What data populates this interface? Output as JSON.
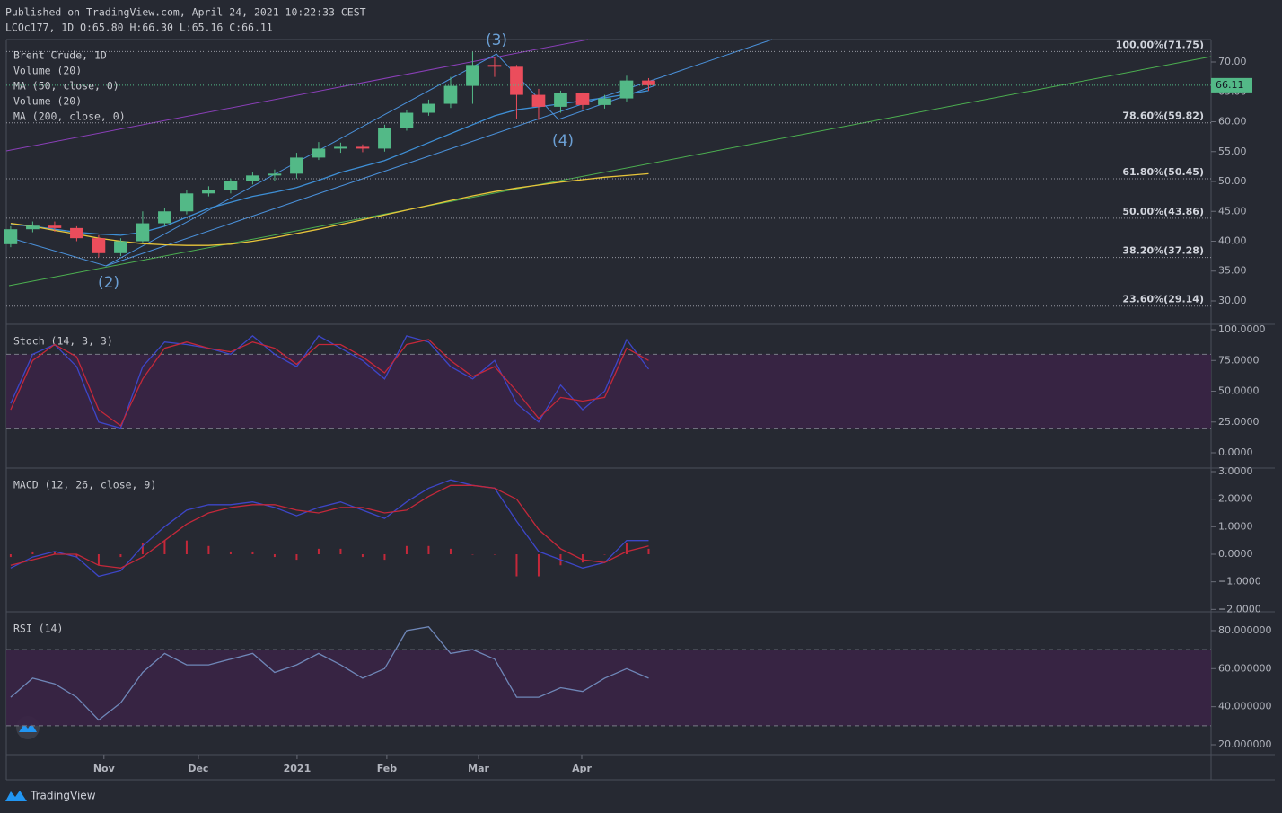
{
  "header": {
    "published": "Published on TradingView.com, April 24, 2021 10:22:33 CEST",
    "symbol": "LCOc177, 1D O:65.80 H:66.30 L:65.16 C:66.11"
  },
  "footer": {
    "brand": "TradingView"
  },
  "chart_data": [
    {
      "type": "candlestick",
      "legend": [
        "Brent Crude, 1D",
        "Volume (20)",
        "MA (50, close, 0)",
        "Volume (20)",
        "MA (200, close, 0)"
      ],
      "categories": [
        null,
        null,
        null,
        null,
        null,
        null,
        null,
        null,
        null,
        null,
        null,
        null,
        null,
        null,
        null,
        null,
        null,
        null,
        null,
        null,
        null,
        null,
        null,
        null,
        null,
        null,
        null,
        null,
        null,
        null
      ],
      "xlim": [
        -0.2,
        54.57
      ],
      "xticks": [
        {
          "value": 4.24,
          "label": "Nov"
        },
        {
          "value": 8.53,
          "label": "Dec"
        },
        {
          "value": 13.02,
          "label": "2021"
        },
        {
          "value": 17.1,
          "label": "Feb"
        },
        {
          "value": 21.27,
          "label": "Mar"
        },
        {
          "value": 25.96,
          "label": "Apr"
        }
      ],
      "open": [
        39.5,
        42,
        42.6,
        42.2,
        40.5,
        38,
        40,
        43,
        45,
        48,
        48.5,
        50,
        51,
        51.3,
        54,
        55.5,
        55.8,
        55.5,
        59,
        61.5,
        63,
        66,
        69.5,
        69.2,
        64.5,
        62.5,
        64.8,
        62.8,
        63.9,
        66.9
      ],
      "high": [
        42.5,
        43.3,
        43.3,
        42.5,
        41,
        40.5,
        45,
        45.5,
        48.6,
        49.2,
        50.5,
        51.5,
        52,
        54.8,
        56.6,
        56.5,
        56.2,
        59.5,
        62,
        63.7,
        67.5,
        71.7,
        70.8,
        69.5,
        65.5,
        65.2,
        64.9,
        64.5,
        67.7,
        67.3
      ],
      "low": [
        39,
        41.5,
        41.6,
        40,
        37.3,
        37.5,
        39.8,
        42.5,
        44.5,
        47.5,
        48,
        49.5,
        50,
        50.5,
        53.6,
        54.8,
        54.9,
        55,
        58.5,
        61,
        62.3,
        63,
        67.5,
        60.5,
        60.3,
        61.5,
        62.1,
        62.2,
        63.4,
        65.2
      ],
      "close": [
        42,
        42.6,
        42.2,
        40.5,
        38,
        40,
        43,
        45,
        48,
        48.5,
        50,
        51,
        51.3,
        54,
        55.5,
        55.8,
        55.5,
        59,
        61.5,
        63,
        66,
        69.5,
        69.2,
        64.5,
        62.5,
        64.8,
        62.8,
        63.9,
        66.9,
        66.11
      ],
      "up_color": "#53b987",
      "down_color": "#eb4d5c",
      "series": [
        {
          "color": "#3e8fd6",
          "values": [
            42.8,
            42.5,
            42,
            41.5,
            41.2,
            41,
            41.5,
            42.5,
            44,
            45.5,
            46.5,
            47.5,
            48.2,
            49,
            50.2,
            51.5,
            52.5,
            53.5,
            55,
            56.5,
            58,
            59.5,
            61,
            62,
            62.5,
            63,
            63.5,
            64,
            64.6,
            65.2
          ]
        },
        {
          "color": "#e8c53a",
          "values": [
            43,
            42.5,
            41.8,
            41.2,
            40.5,
            40,
            39.6,
            39.4,
            39.3,
            39.3,
            39.5,
            40,
            40.6,
            41.3,
            42,
            42.8,
            43.6,
            44.4,
            45.2,
            46,
            46.8,
            47.6,
            48.3,
            48.9,
            49.4,
            49.9,
            50.3,
            50.7,
            51,
            51.3
          ]
        }
      ],
      "ylim": [
        26.09,
        73.76
      ],
      "yticks": [
        {
          "value": 30,
          "label": "30.00"
        },
        {
          "value": 35,
          "label": "35.00"
        },
        {
          "value": 40,
          "label": "40.00"
        },
        {
          "value": 45,
          "label": "45.00"
        },
        {
          "value": 50,
          "label": "50.00"
        },
        {
          "value": 55,
          "label": "55.00"
        },
        {
          "value": 60,
          "label": "60.00"
        },
        {
          "value": 65,
          "label": "65.00"
        },
        {
          "value": 70,
          "label": "70.00"
        }
      ],
      "fib_levels": [
        {
          "value": 71.75,
          "label": "100.00%(71.75)"
        },
        {
          "value": 59.82,
          "label": "78.60%(59.82)"
        },
        {
          "value": 50.45,
          "label": "61.80%(50.45)"
        },
        {
          "value": 43.86,
          "label": "50.00%(43.86)"
        },
        {
          "value": 37.28,
          "label": "38.20%(37.28)"
        },
        {
          "value": 29.14,
          "label": "23.60%(29.14)"
        }
      ],
      "annotations": [
        "(2)",
        "(3)",
        "(4)"
      ],
      "grid": false
    },
    {
      "type": "line",
      "title": "Stoch (14, 3, 3)",
      "ylim": [
        -12.4,
        104.4
      ],
      "yticks": [
        {
          "value": 100,
          "label": "100.0000"
        },
        {
          "value": 75,
          "label": "75.0000"
        },
        {
          "value": 50,
          "label": "50.0000"
        },
        {
          "value": 25,
          "label": "25.0000"
        },
        {
          "value": 0,
          "label": "0.0000"
        }
      ],
      "bands": [
        20,
        80
      ],
      "series": [
        {
          "color": "#3d46c8",
          "values": [
            40,
            80,
            88,
            70,
            25,
            20,
            70,
            90,
            88,
            85,
            80,
            95,
            80,
            70,
            95,
            85,
            75,
            60,
            95,
            90,
            70,
            60,
            75,
            40,
            25,
            55,
            35,
            50,
            92,
            68
          ]
        },
        {
          "color": "#c4283a",
          "values": [
            35,
            75,
            88,
            78,
            35,
            22,
            60,
            85,
            90,
            85,
            82,
            90,
            85,
            72,
            88,
            88,
            78,
            65,
            88,
            92,
            75,
            62,
            70,
            50,
            28,
            45,
            42,
            45,
            85,
            75
          ]
        }
      ],
      "grid": false
    },
    {
      "type": "line",
      "title": "MACD (12, 26, close, 9)",
      "ylim": [
        -2.087,
        3.13
      ],
      "yticks": [
        {
          "value": 3,
          "label": "3.0000"
        },
        {
          "value": 2,
          "label": "2.0000"
        },
        {
          "value": 1,
          "label": "1.0000"
        },
        {
          "value": 0,
          "label": "0.0000"
        },
        {
          "value": -1,
          "label": "−1.0000"
        },
        {
          "value": -2,
          "label": "−2.0000"
        }
      ],
      "series": [
        {
          "type": "bar",
          "color": "#c4283a",
          "values": [
            -0.1,
            0.1,
            0.1,
            -0.1,
            -0.4,
            -0.1,
            0.4,
            0.5,
            0.5,
            0.3,
            0.1,
            0.1,
            -0.1,
            -0.2,
            0.2,
            0.2,
            -0.1,
            -0.2,
            0.3,
            0.3,
            0.2,
            0,
            0,
            -0.8,
            -0.8,
            -0.4,
            -0.3,
            0,
            0.4,
            0.2
          ]
        },
        {
          "color": "#3d46c8",
          "values": [
            -0.5,
            -0.1,
            0.1,
            -0.1,
            -0.8,
            -0.6,
            0.3,
            1.0,
            1.6,
            1.8,
            1.8,
            1.9,
            1.7,
            1.4,
            1.7,
            1.9,
            1.6,
            1.3,
            1.9,
            2.4,
            2.7,
            2.5,
            2.4,
            1.2,
            0.1,
            -0.2,
            -0.5,
            -0.3,
            0.5,
            0.5
          ]
        },
        {
          "color": "#c4283a",
          "values": [
            -0.4,
            -0.2,
            0,
            0,
            -0.4,
            -0.5,
            -0.1,
            0.5,
            1.1,
            1.5,
            1.7,
            1.8,
            1.8,
            1.6,
            1.5,
            1.7,
            1.7,
            1.5,
            1.6,
            2.1,
            2.5,
            2.5,
            2.4,
            2.0,
            0.9,
            0.2,
            -0.2,
            -0.3,
            0.1,
            0.3
          ]
        }
      ],
      "grid": false
    },
    {
      "type": "line",
      "title": "RSI (14)",
      "ylim": [
        14.8,
        89.9
      ],
      "yticks": [
        {
          "value": 80,
          "label": "80.000000"
        },
        {
          "value": 60,
          "label": "60.000000"
        },
        {
          "value": 40,
          "label": "40.000000"
        },
        {
          "value": 20,
          "label": "20.000000"
        }
      ],
      "bands": [
        30,
        70
      ],
      "series": [
        {
          "color": "#6f87b8",
          "values": [
            45,
            55,
            52,
            45,
            33,
            42,
            58,
            68,
            62,
            62,
            65,
            68,
            58,
            62,
            68,
            62,
            55,
            60,
            80,
            82,
            68,
            70,
            65,
            45,
            45,
            50,
            48,
            55,
            60,
            55
          ]
        }
      ],
      "grid": false
    }
  ]
}
